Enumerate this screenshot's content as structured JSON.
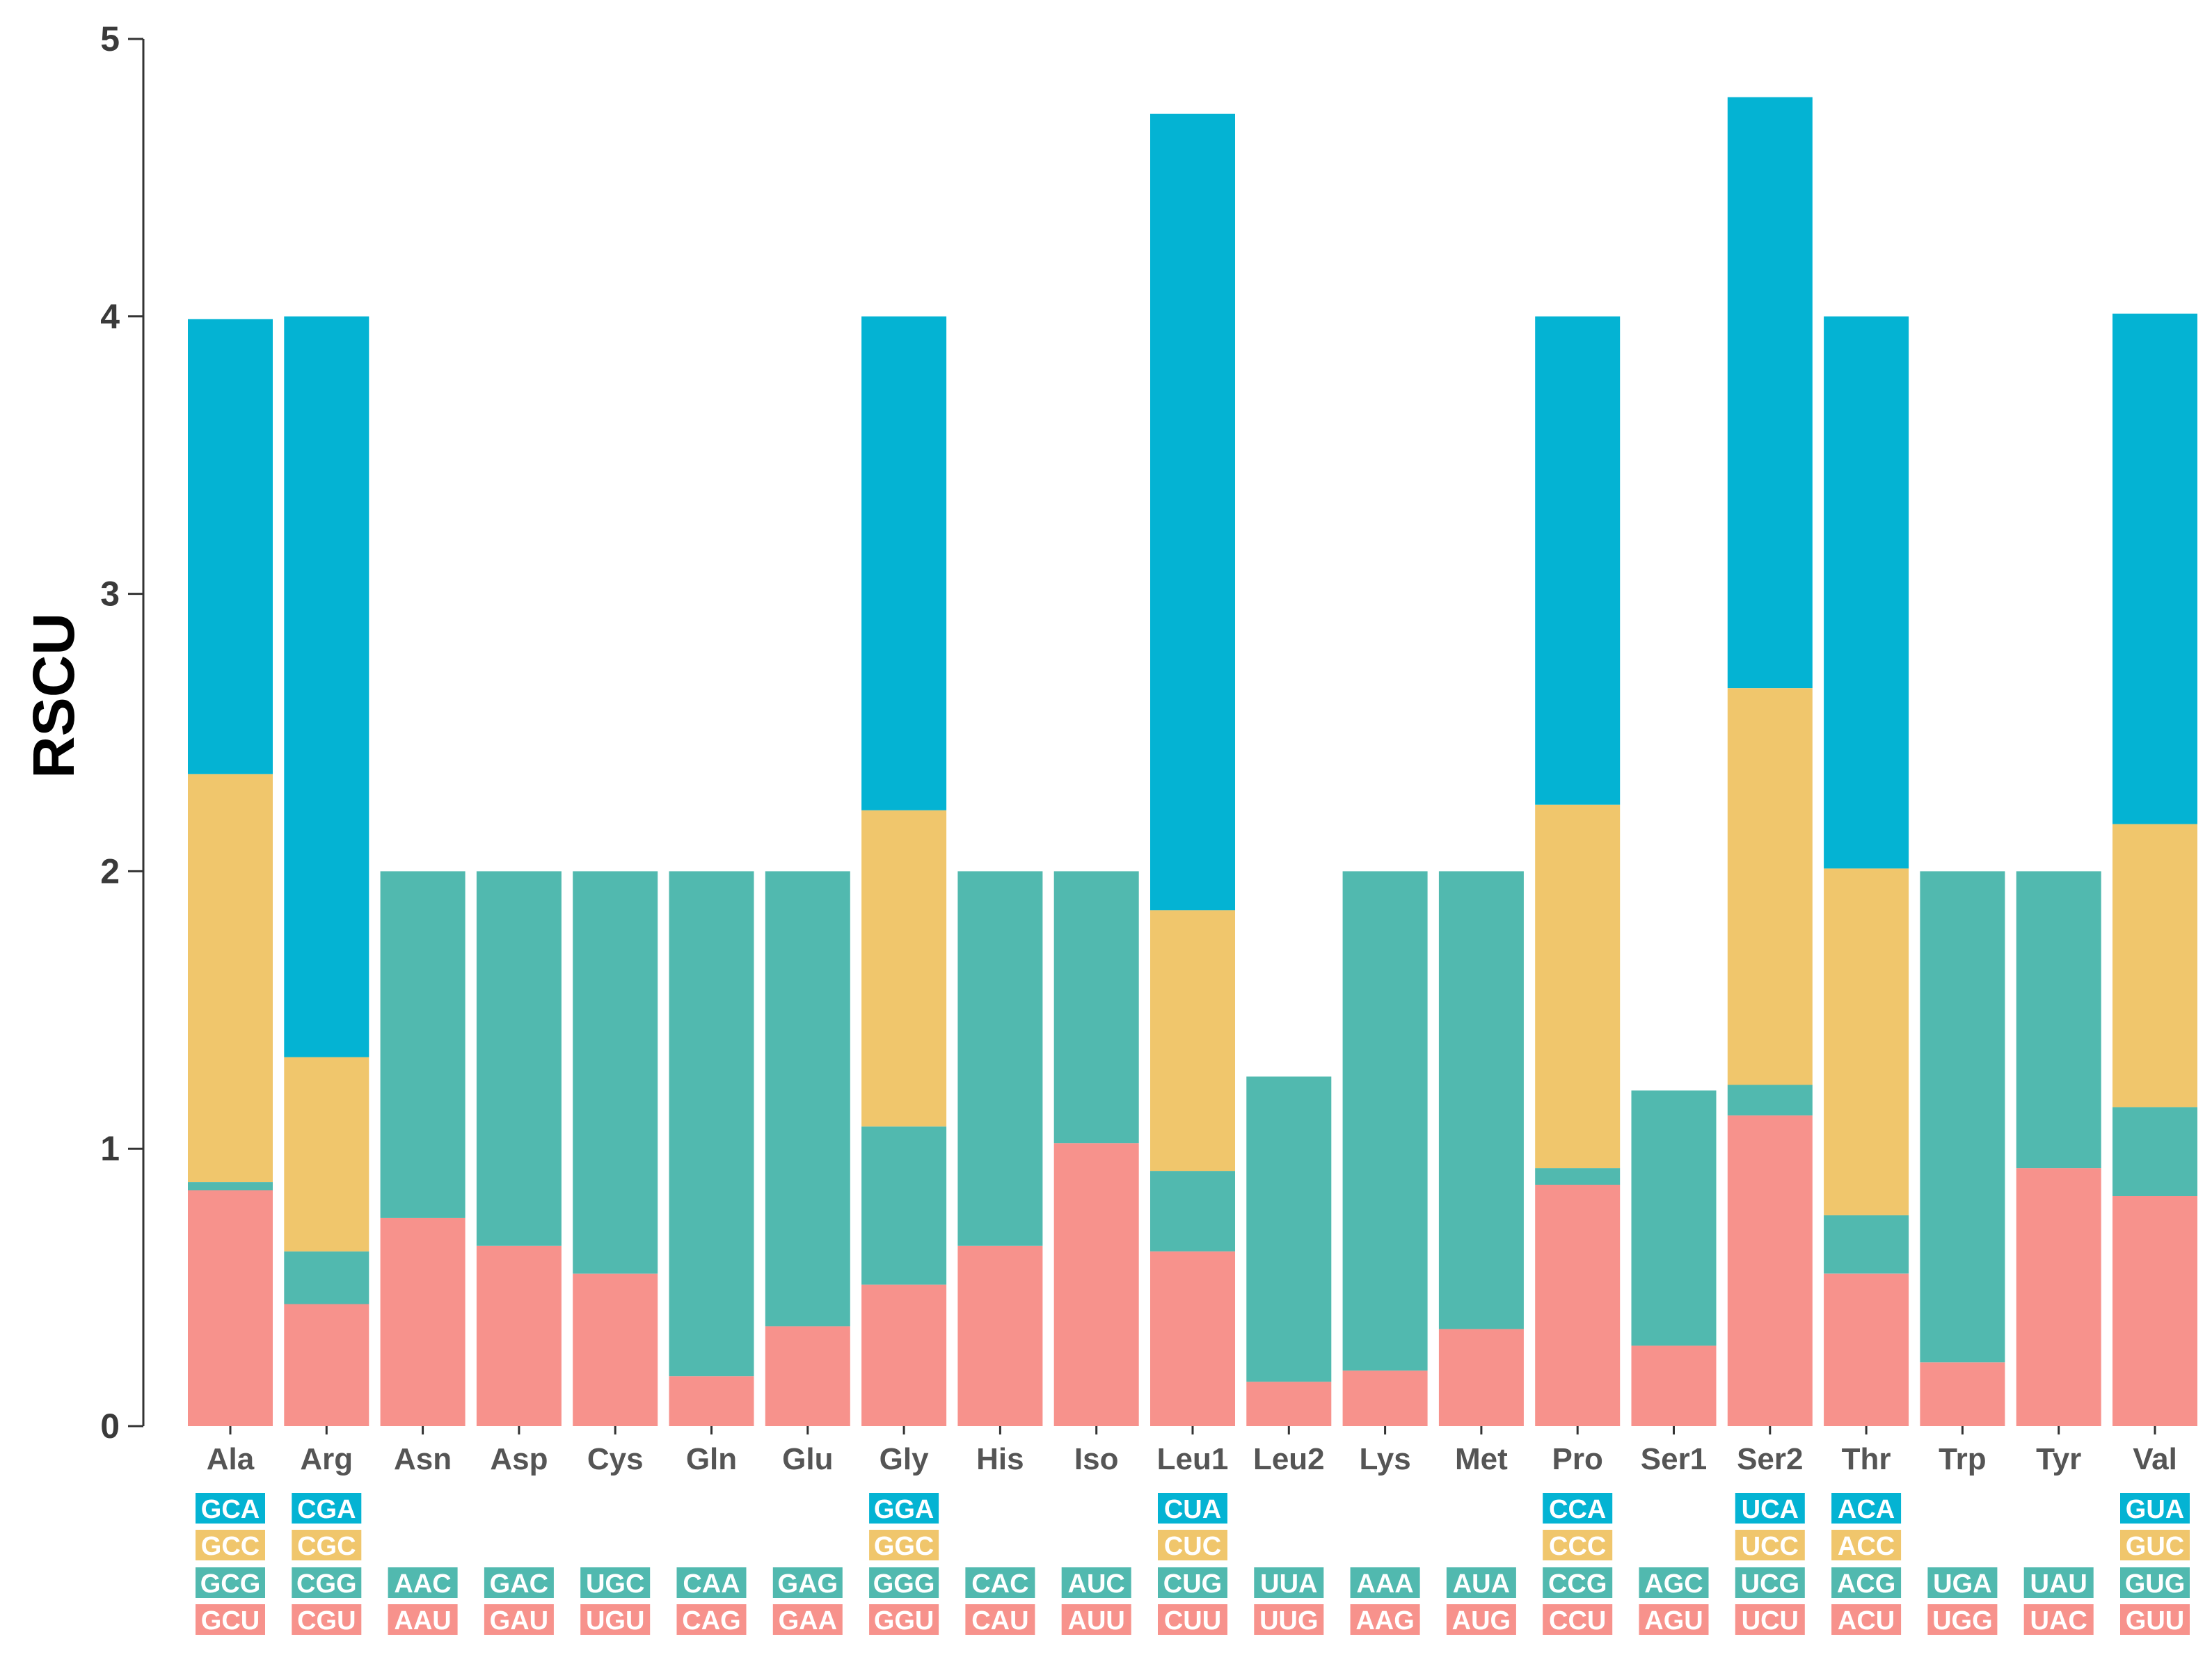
{
  "chart_data": {
    "type": "bar",
    "stacked": true,
    "title": "",
    "xlabel": "",
    "ylabel": "RSCU",
    "ylim": [
      0,
      5
    ],
    "yticks": [
      0,
      1,
      2,
      3,
      4,
      5
    ],
    "grid": false,
    "legend": "none",
    "colors": {
      "pink": "#f7928c",
      "green": "#51b9af",
      "yellow": "#f0c66c",
      "blue": "#04b3d3",
      "axis": "#333333"
    },
    "categories": [
      {
        "name": "Ala",
        "stack": [
          {
            "codon": "GCU",
            "value": 0.85,
            "color": "pink"
          },
          {
            "codon": "GCG",
            "value": 0.03,
            "color": "green"
          },
          {
            "codon": "GCC",
            "value": 1.47,
            "color": "yellow"
          },
          {
            "codon": "GCA",
            "value": 1.64,
            "color": "blue"
          }
        ]
      },
      {
        "name": "Arg",
        "stack": [
          {
            "codon": "CGU",
            "value": 0.44,
            "color": "pink"
          },
          {
            "codon": "CGG",
            "value": 0.19,
            "color": "green"
          },
          {
            "codon": "CGC",
            "value": 0.7,
            "color": "yellow"
          },
          {
            "codon": "CGA",
            "value": 2.67,
            "color": "blue"
          }
        ]
      },
      {
        "name": "Asn",
        "stack": [
          {
            "codon": "AAU",
            "value": 0.75,
            "color": "pink"
          },
          {
            "codon": "AAC",
            "value": 1.25,
            "color": "green"
          }
        ]
      },
      {
        "name": "Asp",
        "stack": [
          {
            "codon": "GAU",
            "value": 0.65,
            "color": "pink"
          },
          {
            "codon": "GAC",
            "value": 1.35,
            "color": "green"
          }
        ]
      },
      {
        "name": "Cys",
        "stack": [
          {
            "codon": "UGU",
            "value": 0.55,
            "color": "pink"
          },
          {
            "codon": "UGC",
            "value": 1.45,
            "color": "green"
          }
        ]
      },
      {
        "name": "Gln",
        "stack": [
          {
            "codon": "CAG",
            "value": 0.18,
            "color": "pink"
          },
          {
            "codon": "CAA",
            "value": 1.82,
            "color": "green"
          }
        ]
      },
      {
        "name": "Glu",
        "stack": [
          {
            "codon": "GAA",
            "value": 0.36,
            "color": "pink"
          },
          {
            "codon": "GAG",
            "value": 1.64,
            "color": "green"
          }
        ]
      },
      {
        "name": "Gly",
        "stack": [
          {
            "codon": "GGU",
            "value": 0.51,
            "color": "pink"
          },
          {
            "codon": "GGG",
            "value": 0.57,
            "color": "green"
          },
          {
            "codon": "GGC",
            "value": 1.14,
            "color": "yellow"
          },
          {
            "codon": "GGA",
            "value": 1.78,
            "color": "blue"
          }
        ]
      },
      {
        "name": "His",
        "stack": [
          {
            "codon": "CAU",
            "value": 0.65,
            "color": "pink"
          },
          {
            "codon": "CAC",
            "value": 1.35,
            "color": "green"
          }
        ]
      },
      {
        "name": "Iso",
        "stack": [
          {
            "codon": "AUU",
            "value": 1.02,
            "color": "pink"
          },
          {
            "codon": "AUC",
            "value": 0.98,
            "color": "green"
          }
        ]
      },
      {
        "name": "Leu1",
        "stack": [
          {
            "codon": "CUU",
            "value": 0.63,
            "color": "pink"
          },
          {
            "codon": "CUG",
            "value": 0.29,
            "color": "green"
          },
          {
            "codon": "CUC",
            "value": 0.94,
            "color": "yellow"
          },
          {
            "codon": "CUA",
            "value": 2.87,
            "color": "blue"
          }
        ]
      },
      {
        "name": "Leu2",
        "stack": [
          {
            "codon": "UUG",
            "value": 0.16,
            "color": "pink"
          },
          {
            "codon": "UUA",
            "value": 1.1,
            "color": "green"
          }
        ]
      },
      {
        "name": "Lys",
        "stack": [
          {
            "codon": "AAG",
            "value": 0.2,
            "color": "pink"
          },
          {
            "codon": "AAA",
            "value": 1.8,
            "color": "green"
          }
        ]
      },
      {
        "name": "Met",
        "stack": [
          {
            "codon": "AUG",
            "value": 0.35,
            "color": "pink"
          },
          {
            "codon": "AUA",
            "value": 1.65,
            "color": "green"
          }
        ]
      },
      {
        "name": "Pro",
        "stack": [
          {
            "codon": "CCU",
            "value": 0.87,
            "color": "pink"
          },
          {
            "codon": "CCG",
            "value": 0.06,
            "color": "green"
          },
          {
            "codon": "CCC",
            "value": 1.31,
            "color": "yellow"
          },
          {
            "codon": "CCA",
            "value": 1.76,
            "color": "blue"
          }
        ]
      },
      {
        "name": "Ser1",
        "stack": [
          {
            "codon": "AGU",
            "value": 0.29,
            "color": "pink"
          },
          {
            "codon": "AGC",
            "value": 0.92,
            "color": "green"
          }
        ]
      },
      {
        "name": "Ser2",
        "stack": [
          {
            "codon": "UCU",
            "value": 1.12,
            "color": "pink"
          },
          {
            "codon": "UCG",
            "value": 0.11,
            "color": "green"
          },
          {
            "codon": "UCC",
            "value": 1.43,
            "color": "yellow"
          },
          {
            "codon": "UCA",
            "value": 2.13,
            "color": "blue"
          }
        ]
      },
      {
        "name": "Thr",
        "stack": [
          {
            "codon": "ACU",
            "value": 0.55,
            "color": "pink"
          },
          {
            "codon": "ACG",
            "value": 0.21,
            "color": "green"
          },
          {
            "codon": "ACC",
            "value": 1.25,
            "color": "yellow"
          },
          {
            "codon": "ACA",
            "value": 1.99,
            "color": "blue"
          }
        ]
      },
      {
        "name": "Trp",
        "stack": [
          {
            "codon": "UGG",
            "value": 0.23,
            "color": "pink"
          },
          {
            "codon": "UGA",
            "value": 1.77,
            "color": "green"
          }
        ]
      },
      {
        "name": "Tyr",
        "stack": [
          {
            "codon": "UAC",
            "value": 0.93,
            "color": "pink"
          },
          {
            "codon": "UAU",
            "value": 1.07,
            "color": "green"
          }
        ]
      },
      {
        "name": "Val",
        "stack": [
          {
            "codon": "GUU",
            "value": 0.83,
            "color": "pink"
          },
          {
            "codon": "GUG",
            "value": 0.32,
            "color": "green"
          },
          {
            "codon": "GUC",
            "value": 1.02,
            "color": "yellow"
          },
          {
            "codon": "GUA",
            "value": 1.84,
            "color": "blue"
          }
        ]
      }
    ]
  }
}
